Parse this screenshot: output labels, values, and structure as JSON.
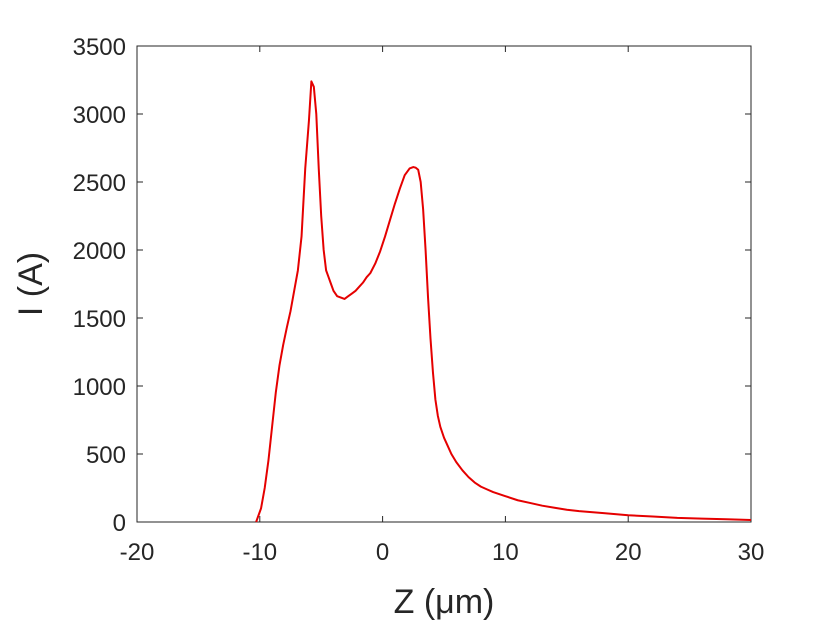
{
  "chart_data": {
    "type": "line",
    "xlabel": "Z (μm)",
    "ylabel": "I (A)",
    "xlim": [
      -20,
      30
    ],
    "ylim": [
      0,
      3500
    ],
    "xticks": [
      -20,
      -10,
      0,
      10,
      20,
      30
    ],
    "yticks": [
      0,
      500,
      1000,
      1500,
      2000,
      2500,
      3000,
      3500
    ],
    "grid": false,
    "line_color": "#e50000",
    "series": [
      {
        "x": [
          -10.3,
          -9.9,
          -9.6,
          -9.3,
          -9.0,
          -8.7,
          -8.4,
          -8.1,
          -7.8,
          -7.5,
          -7.2,
          -6.9,
          -6.6,
          -6.3,
          -6.0,
          -5.8,
          -5.6,
          -5.4,
          -5.2,
          -5.0,
          -4.8,
          -4.6,
          -4.4,
          -4.2,
          -4.0,
          -3.7,
          -3.4,
          -3.1,
          -2.8,
          -2.5,
          -2.2,
          -1.9,
          -1.6,
          -1.3,
          -1.0,
          -0.6,
          -0.2,
          0.2,
          0.6,
          1.0,
          1.4,
          1.8,
          2.2,
          2.5,
          2.7,
          2.9,
          3.1,
          3.3,
          3.5,
          3.7,
          3.9,
          4.1,
          4.3,
          4.5,
          4.7,
          5.0,
          5.3,
          5.6,
          6.0,
          6.5,
          7.0,
          7.5,
          8.0,
          8.5,
          9.0,
          10.0,
          11.0,
          12.0,
          13.0,
          14.0,
          15.0,
          16.0,
          18.0,
          20.0,
          22.0,
          24.0,
          26.0,
          28.0,
          30.0
        ],
        "values": [
          0,
          100,
          250,
          450,
          700,
          950,
          1150,
          1300,
          1430,
          1550,
          1700,
          1850,
          2100,
          2600,
          2950,
          3240,
          3200,
          3000,
          2600,
          2250,
          2000,
          1850,
          1800,
          1750,
          1700,
          1660,
          1650,
          1640,
          1660,
          1680,
          1700,
          1730,
          1760,
          1800,
          1830,
          1900,
          1990,
          2100,
          2220,
          2340,
          2450,
          2550,
          2600,
          2610,
          2605,
          2590,
          2500,
          2300,
          2000,
          1650,
          1350,
          1100,
          900,
          780,
          700,
          620,
          560,
          500,
          440,
          380,
          330,
          290,
          260,
          240,
          220,
          190,
          160,
          140,
          120,
          105,
          90,
          80,
          65,
          50,
          40,
          30,
          25,
          20,
          15
        ]
      }
    ]
  }
}
